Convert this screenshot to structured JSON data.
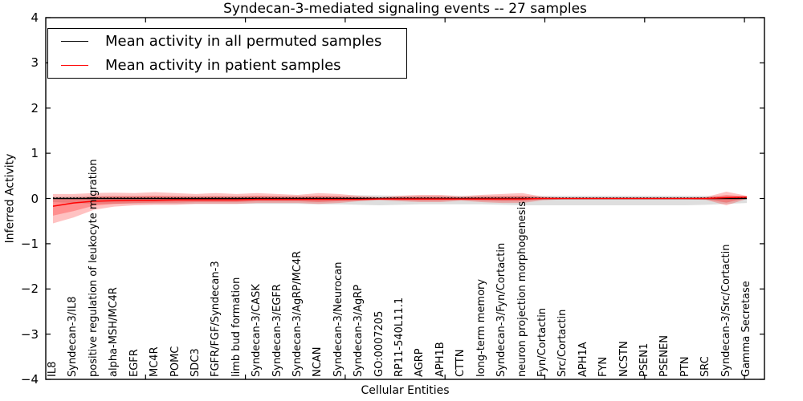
{
  "chart_data": {
    "type": "line",
    "title": "Syndecan-3-mediated signaling events -- 27 samples",
    "xlabel": "Cellular Entities",
    "ylabel": "Inferred Activity",
    "ylim": [
      -4,
      4
    ],
    "ytick_labels": [
      "4",
      "3",
      "2",
      "1",
      "0",
      "−1",
      "−2",
      "−3",
      "−4"
    ],
    "ytick_values": [
      4,
      3,
      2,
      1,
      0,
      -1,
      -2,
      -3,
      -4
    ],
    "xtick_major_values": [
      5,
      10,
      15,
      20,
      25,
      30,
      35
    ],
    "xlim": [
      0,
      36
    ],
    "grid": false,
    "legend_position": "upper left",
    "legend": [
      {
        "label": "Mean activity in all permuted samples",
        "color": "#000000"
      },
      {
        "label": "Mean activity in patient samples",
        "color": "#ff0000"
      }
    ],
    "categories": [
      "IL8",
      "Syndecan-3/IL8",
      "positive regulation of leukocyte migration",
      "alpha-MSH/MC4R",
      "EGFR",
      "MC4R",
      "POMC",
      "SDC3",
      "FGFR/FGF/Syndecan-3",
      "limb bud formation",
      "Syndecan-3/CASK",
      "Syndecan-3/EGFR",
      "Syndecan-3/AgRP/MC4R",
      "NCAN",
      "Syndecan-3/Neurocan",
      "Syndecan-3/AgRP",
      "GO:0007205",
      "RP11-540L11.1",
      "AGRP",
      "APH1B",
      "CTTN",
      "long-term memory",
      "Syndecan-3/Fyn/Cortactin",
      "neuron projection morphogenesis",
      "Fyn/Cortactin",
      "Src/Cortactin",
      "APH1A",
      "FYN",
      "NCSTN",
      "PSEN1",
      "PSENEN",
      "PTN",
      "SRC",
      "Syndecan-3/Src/Cortactin",
      "Gamma Secretase"
    ],
    "series": [
      {
        "name": "permuted_mean",
        "color": "#000000",
        "style": "solid",
        "values": [
          0,
          0,
          0,
          0,
          0,
          0,
          0,
          0,
          0,
          0,
          0,
          0,
          0,
          0,
          0,
          0,
          0,
          0,
          0,
          0,
          0,
          0,
          0,
          0,
          0,
          0,
          0,
          0,
          0,
          0,
          0,
          0,
          0,
          0,
          0
        ]
      },
      {
        "name": "permuted_median",
        "color": "#000000",
        "style": "dotted",
        "values": [
          0.01,
          0.01,
          0.01,
          0.01,
          0.01,
          0.01,
          0.01,
          0.01,
          0.01,
          0.01,
          0.01,
          0.01,
          0.01,
          0.01,
          0.01,
          0.01,
          0.01,
          0.01,
          0.01,
          0.01,
          0.01,
          0.01,
          0.01,
          0.01,
          0.01,
          0.01,
          0.01,
          0.01,
          0.01,
          0.01,
          0.01,
          0.01,
          0.01,
          0.01,
          0.01
        ]
      },
      {
        "name": "patient_mean",
        "color": "#ff0000",
        "style": "solid",
        "values": [
          -0.17,
          -0.1,
          -0.06,
          -0.05,
          -0.04,
          -0.04,
          -0.03,
          -0.03,
          -0.03,
          -0.03,
          -0.02,
          -0.02,
          -0.02,
          -0.02,
          -0.02,
          -0.02,
          -0.01,
          -0.01,
          -0.01,
          -0.01,
          -0.01,
          -0.01,
          -0.01,
          -0.01,
          0,
          0,
          0,
          0,
          0,
          0,
          0,
          0,
          0,
          0.02,
          0.03
        ]
      }
    ],
    "bands": [
      {
        "name": "permuted_range",
        "color": "rgba(0,0,0,0.13)",
        "hi": [
          0.04,
          0.05,
          0.06,
          0.06,
          0.06,
          0.06,
          0.06,
          0.06,
          0.06,
          0.06,
          0.06,
          0.06,
          0.06,
          0.06,
          0.06,
          0.07,
          0.07,
          0.06,
          0.06,
          0.06,
          0.06,
          0.06,
          0.06,
          0.06,
          0.06,
          0.06,
          0.06,
          0.06,
          0.06,
          0.06,
          0.06,
          0.06,
          0.06,
          0.05,
          0.04
        ],
        "lo": [
          -0.08,
          -0.1,
          -0.12,
          -0.12,
          -0.12,
          -0.12,
          -0.12,
          -0.12,
          -0.12,
          -0.12,
          -0.12,
          -0.12,
          -0.12,
          -0.13,
          -0.13,
          -0.14,
          -0.15,
          -0.14,
          -0.13,
          -0.13,
          -0.13,
          -0.13,
          -0.14,
          -0.15,
          -0.15,
          -0.15,
          -0.15,
          -0.15,
          -0.15,
          -0.15,
          -0.15,
          -0.15,
          -0.14,
          -0.12,
          -0.1
        ]
      },
      {
        "name": "patient_range_outer",
        "color": "rgba(255,0,0,0.24)",
        "hi": [
          0.1,
          0.1,
          0.12,
          0.13,
          0.12,
          0.14,
          0.12,
          0.1,
          0.12,
          0.1,
          0.12,
          0.1,
          0.08,
          0.12,
          0.1,
          0.06,
          0.03,
          0.06,
          0.08,
          0.08,
          0.05,
          0.08,
          0.1,
          0.12,
          0.04,
          0.02,
          0.02,
          0.02,
          0.02,
          0.02,
          0.02,
          0.02,
          0.03,
          0.15,
          0.06
        ],
        "lo": [
          -0.55,
          -0.42,
          -0.25,
          -0.18,
          -0.15,
          -0.14,
          -0.14,
          -0.12,
          -0.12,
          -0.12,
          -0.1,
          -0.1,
          -0.1,
          -0.12,
          -0.1,
          -0.06,
          -0.04,
          -0.06,
          -0.08,
          -0.08,
          -0.05,
          -0.08,
          -0.1,
          -0.1,
          -0.04,
          -0.02,
          -0.02,
          -0.02,
          -0.02,
          -0.02,
          -0.02,
          -0.02,
          -0.03,
          -0.15,
          -0.01
        ]
      },
      {
        "name": "patient_range_inner",
        "color": "rgba(255,0,0,0.26)",
        "hi": [
          -0.02,
          0.01,
          0.04,
          0.05,
          0.05,
          0.06,
          0.05,
          0.04,
          0.05,
          0.04,
          0.06,
          0.05,
          0.04,
          0.06,
          0.05,
          0.02,
          0.01,
          0.03,
          0.04,
          0.04,
          0.02,
          0.04,
          0.05,
          0.06,
          0.02,
          0.01,
          0.01,
          0.01,
          0.01,
          0.01,
          0.01,
          0.01,
          0.015,
          0.08,
          0.045
        ],
        "lo": [
          -0.38,
          -0.28,
          -0.16,
          -0.12,
          -0.1,
          -0.09,
          -0.09,
          -0.08,
          -0.08,
          -0.08,
          -0.06,
          -0.06,
          -0.06,
          -0.08,
          -0.06,
          -0.04,
          -0.025,
          -0.04,
          -0.05,
          -0.05,
          -0.03,
          -0.05,
          -0.06,
          -0.06,
          -0.02,
          -0.01,
          -0.01,
          -0.01,
          -0.01,
          -0.01,
          -0.01,
          -0.01,
          -0.02,
          -0.09,
          0.01
        ]
      }
    ]
  }
}
